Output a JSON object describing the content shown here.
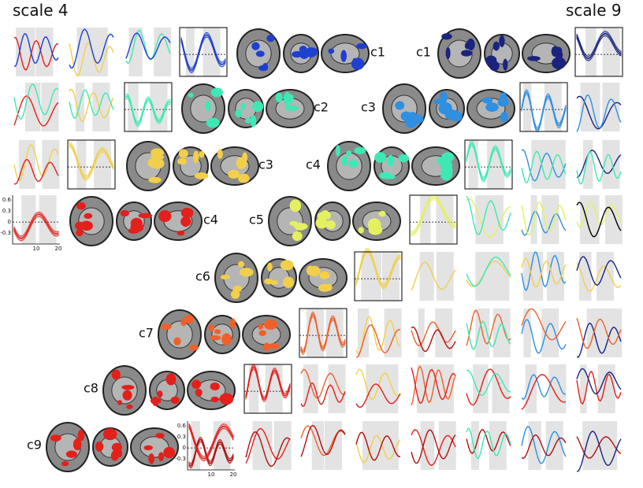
{
  "titles": {
    "left": "scale 4",
    "right": "scale 9"
  },
  "component_labels": [
    "c1",
    "c1",
    "c2",
    "c3",
    "c3",
    "c4",
    "c4",
    "c5",
    "c6",
    "c7",
    "c8",
    "c9"
  ],
  "axes": [
    {
      "yticks": [
        "0.6",
        "0.3",
        "0",
        "-0.3"
      ],
      "xticks": [
        "10",
        "20"
      ]
    },
    {
      "yticks": [
        "0.6",
        "0.3",
        "0",
        "-0.3"
      ],
      "xticks": [
        "10",
        "20"
      ]
    }
  ]
}
